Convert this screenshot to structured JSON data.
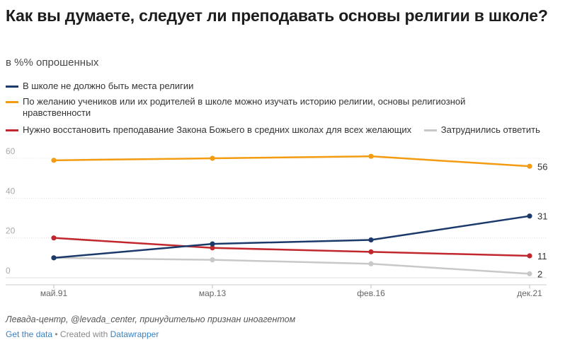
{
  "chart_data": {
    "type": "line",
    "title": "Как вы думаете, следует ли преподавать основы религии в школе?",
    "subtitle": "в %% опрошенных",
    "categories": [
      "май.91",
      "мар.13",
      "фев.16",
      "дек.21"
    ],
    "y_ticks": [
      "0",
      "20",
      "40",
      "60"
    ],
    "ylim": [
      0,
      60
    ],
    "grid": true,
    "series": [
      {
        "name": "В школе не должно быть места религии",
        "color": "#1b3a6b",
        "values": [
          10,
          17,
          19,
          31
        ],
        "end_label": "31"
      },
      {
        "name": "По желанию учеников или их родителей в школе можно изучать историю религии, основы религиозной нравственности",
        "color": "#f39c12",
        "values": [
          59,
          60,
          61,
          56
        ],
        "end_label": "56"
      },
      {
        "name": "Нужно восстановить преподавание Закона Божьего в средних школах для всех желающих",
        "color": "#c0282d",
        "values": [
          20,
          15,
          13,
          11
        ],
        "end_label": "11"
      },
      {
        "name": "Затруднились ответить",
        "color": "#c8c8c8",
        "values": [
          10,
          9,
          7,
          2
        ],
        "end_label": "2"
      }
    ]
  },
  "footer": {
    "source": "Левада-центр, @levada_center, принудительно признан иноагентом",
    "get_data": "Get the data",
    "separator": " • Created with ",
    "datawrapper": "Datawrapper"
  }
}
